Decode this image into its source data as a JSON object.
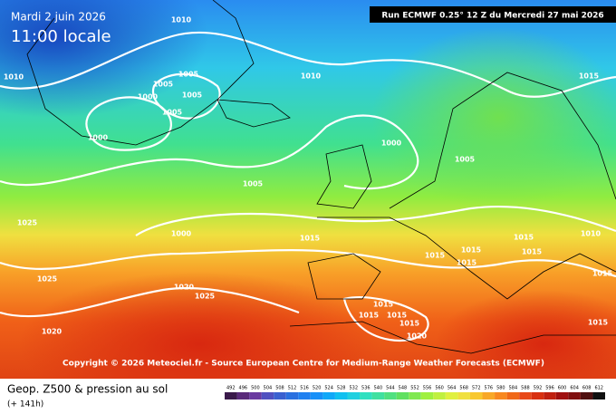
{
  "header": {
    "date": "Mardi 2 juin 2026",
    "time": "11:00 locale",
    "run": "Run ECMWF 0.25° 12 Z du Mercredi 27 mai 2026"
  },
  "copyright": "Copyright © 2026 Meteociel.fr - Source European Centre for Medium-Range Weather Forecasts (ECMWF)",
  "isobar_labels": [
    "1010",
    "1010",
    "1005",
    "1005",
    "1000",
    "1005",
    "1005",
    "1000",
    "1010",
    "1000",
    "1005",
    "1005",
    "1015",
    "1025",
    "1000",
    "1015",
    "1015",
    "1015",
    "1015",
    "1015",
    "1010",
    "1025",
    "1020",
    "1025",
    "1015",
    "1015",
    "1015",
    "1015",
    "1020",
    "1020",
    "1015",
    "1015",
    "1015"
  ],
  "legend": {
    "title": "Geop. Z500 & pression au sol",
    "subtitle": "(+ 141h)",
    "scale": [
      492,
      496,
      500,
      504,
      508,
      512,
      516,
      520,
      524,
      528,
      532,
      536,
      540,
      544,
      548,
      552,
      556,
      560,
      564,
      568,
      572,
      576,
      580,
      584,
      588,
      592,
      596,
      600,
      604,
      608,
      612
    ],
    "colors": [
      "#3a1a4a",
      "#5a2a7a",
      "#6a3aa0",
      "#5050c0",
      "#3a60d0",
      "#2a70e0",
      "#2080f0",
      "#1890f8",
      "#10a8f8",
      "#10c0f0",
      "#20d0e0",
      "#30e0c0",
      "#40e0a0",
      "#50e080",
      "#60e060",
      "#80e850",
      "#a0f040",
      "#c0f040",
      "#e0f040",
      "#f0e040",
      "#f8c830",
      "#f8a828",
      "#f88820",
      "#f06818",
      "#e84818",
      "#d83010",
      "#c02010",
      "#a01010",
      "#801010",
      "#501010",
      "#101010"
    ]
  }
}
